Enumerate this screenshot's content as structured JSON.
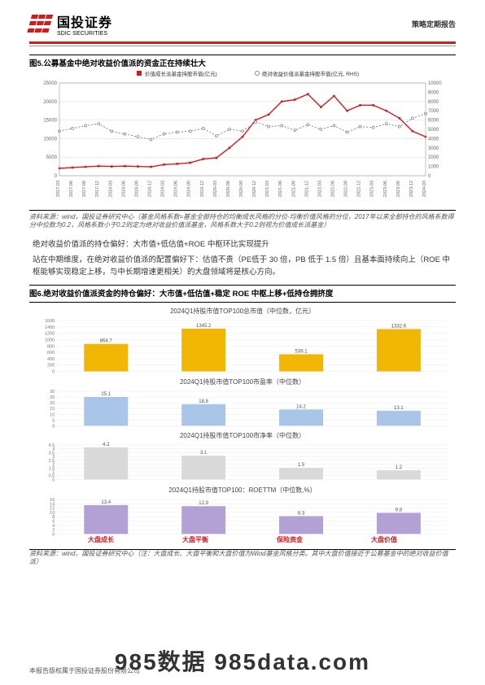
{
  "header": {
    "logo_cn": "国投证券",
    "logo_en": "SDIC SECURITIES",
    "doc_type": "策略定期报告"
  },
  "fig5": {
    "title": "图5.公募基金中绝对收益价值派的资金正在持续壮大",
    "legend_left": "价值成长派基金持股市值(亿元)",
    "legend_right": "绝对收益价值派基金持股市值(亿元, RHS)",
    "line_left_color": "#d7191c",
    "line_right_color": "#888888",
    "grid_color": "#d9d9d9",
    "bg_color": "#ffffff",
    "y_left_max": 25000,
    "y_left_step": 5000,
    "y_right_max": 10000,
    "y_right_step": 1000,
    "x_labels": [
      "2017-03",
      "2017-06",
      "2017-09",
      "2017-12",
      "2018-03",
      "2018-06",
      "2018-09",
      "2018-12",
      "2019-03",
      "2019-06",
      "2019-09",
      "2019-12",
      "2020-03",
      "2020-06",
      "2020-09",
      "2020-12",
      "2021-03",
      "2021-06",
      "2021-09",
      "2021-12",
      "2022-03",
      "2022-06",
      "2022-09",
      "2022-12",
      "2023-03",
      "2023-06",
      "2023-09",
      "2023-12",
      "2024-03"
    ],
    "left_values": [
      2000,
      2200,
      2400,
      2600,
      2500,
      2600,
      2500,
      2400,
      3000,
      3200,
      3500,
      4500,
      4800,
      7500,
      10500,
      15000,
      16500,
      20000,
      20500,
      22000,
      18500,
      21500,
      17500,
      19000,
      19000,
      17500,
      15500,
      12000,
      10500
    ],
    "right_values": [
      4800,
      5100,
      5400,
      5600,
      4800,
      4500,
      4200,
      3900,
      4500,
      4700,
      4800,
      5100,
      4300,
      5000,
      4800,
      5800,
      5300,
      5400,
      4900,
      5500,
      5000,
      5400,
      4700,
      5300,
      5200,
      5600,
      5300,
      6200,
      6700
    ],
    "source": "资料来源：wind，国投证券研究中心（基金风格系数=基金全部持仓的均衡成长风格的分位-均衡价值风格的分位，2017年以来全部持仓的风格系数得分中位数为0.2，风格系数小于0.2则定为绝对收益价值派基金，风格系数大于0.2则视为价值成长派基金）"
  },
  "para1": "绝对收益价值派的持仓偏好：大市值+低估值+ROE 中枢环比实现提升",
  "para2": "站在中期维度，在绝对收益价值派的配置偏好下：估值不贵（PE低于 30 倍，PB 低于 1.5 倍）且基本面持续向上（ROE 中枢能够实现稳定上移，与中长期增速更相关）的大盘领域将是核心方向。",
  "fig6": {
    "title": "图6.绝对收益价值派资金的持仓偏好：大市值+低估值+稳定 ROE 中枢上移+低持仓拥挤度",
    "categories": [
      "大盘成长",
      "大盘平衡",
      "保险资金",
      "大盘价值"
    ],
    "panels": [
      {
        "title": "2024Q1持股市值TOP100总市值（中位数，亿元）",
        "values": [
          864.7,
          1345.2,
          539.1,
          1332.6
        ],
        "ymax": 1600,
        "ystep": 200,
        "color": "#f2b705"
      },
      {
        "title": "2024Q1持股市值TOP100市盈率（中位数）",
        "values": [
          25.1,
          18.8,
          14.2,
          13.1
        ],
        "ymax": 30,
        "ystep": 5,
        "color": "#a9c6e8"
      },
      {
        "title": "2024Q1持股市值TOP100市净率（中位数）",
        "values": [
          4.2,
          3.1,
          1.5,
          1.2
        ],
        "ymax": 4.5,
        "ystep": 0.5,
        "color": "#d9d9d9"
      },
      {
        "title": "2024Q1持股市值TOP100：ROETTM（中位数,%）",
        "values": [
          13.4,
          12.9,
          8.3,
          9.8
        ],
        "ymax": 16,
        "ystep": 2,
        "color": "#b3a1d6"
      }
    ],
    "source": "资料来源：wind，国投证券研究中心（注：大盘成长、大盘平衡和大盘价值为Wind基金风格分类。其中大盘价值接近于公募基金中的绝对收益价值派）"
  },
  "footer": "本报告版权属于国投证券股份有限公司",
  "watermark": "985数据 985data.com"
}
